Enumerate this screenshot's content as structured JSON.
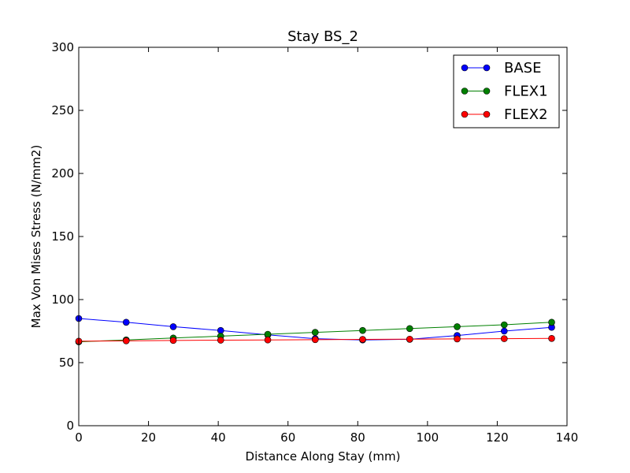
{
  "chart_data": {
    "type": "line",
    "title": "Stay BS_2",
    "xlabel": "Distance Along Stay (mm)",
    "ylabel": "Max Von Mises Stress (N/mm2)",
    "xlim": [
      0,
      140
    ],
    "ylim": [
      0,
      300
    ],
    "xticks": [
      0,
      20,
      40,
      60,
      80,
      100,
      120,
      140
    ],
    "yticks": [
      0,
      50,
      100,
      150,
      200,
      250,
      300
    ],
    "grid": false,
    "legend_position": "top-right",
    "x": [
      0,
      13.6,
      27.1,
      40.7,
      54.2,
      67.8,
      81.4,
      94.9,
      108.5,
      122.0,
      135.6
    ],
    "series": [
      {
        "name": "BASE",
        "color": "#0000ff",
        "values": [
          85,
          82,
          78.5,
          75.5,
          72,
          69,
          68,
          68.5,
          71.5,
          75,
          78
        ]
      },
      {
        "name": "FLEX1",
        "color": "#008000",
        "values": [
          66.5,
          68,
          69.5,
          71,
          72.5,
          74,
          75.5,
          77,
          78.5,
          80,
          82
        ]
      },
      {
        "name": "FLEX2",
        "color": "#ff0000",
        "values": [
          67,
          67.3,
          67.6,
          67.8,
          68,
          68.2,
          68.4,
          68.6,
          68.8,
          69,
          69.2
        ]
      }
    ]
  }
}
